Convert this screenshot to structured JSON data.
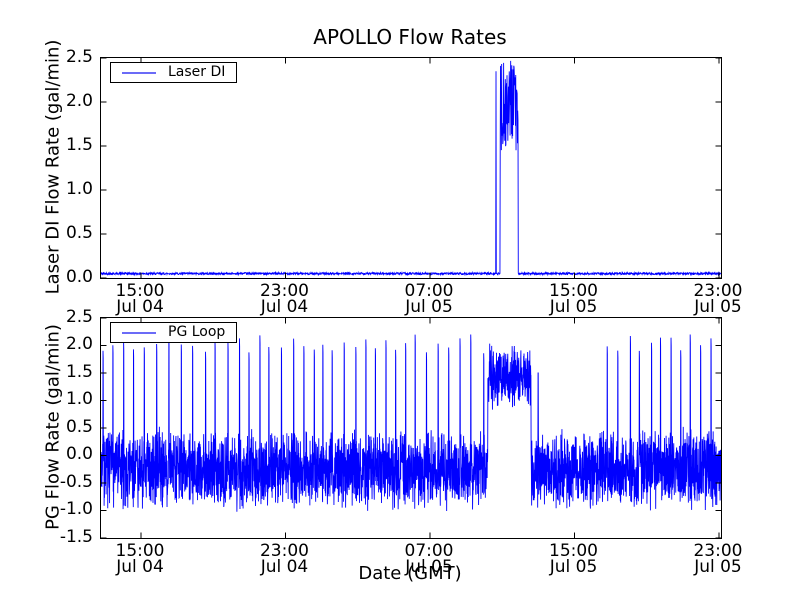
{
  "figure": {
    "background": "#ffffff",
    "axis_color": "#000000",
    "line_color": "#0000ff",
    "legend_sample_color": "#6b6bf7"
  },
  "chart_data": [
    {
      "type": "line",
      "title": "APOLLO Flow Rates",
      "ylabel": "Laser DI Flow Rate (gal/min)",
      "legend": "Laser DI",
      "legend_position": "upper-left",
      "grid": false,
      "ylim": [
        0.0,
        2.5
      ],
      "yticks": [
        "0.0",
        "0.5",
        "1.0",
        "1.5",
        "2.0",
        "2.5"
      ],
      "xticks": [
        {
          "frac": 0.06452,
          "time": "15:00",
          "date": "Jul 04"
        },
        {
          "frac": 0.29758,
          "time": "23:00",
          "date": "Jul 04"
        },
        {
          "frac": 0.53065,
          "time": "07:00",
          "date": "Jul 05"
        },
        {
          "frac": 0.76371,
          "time": "15:00",
          "date": "Jul 05"
        },
        {
          "frac": 0.99677,
          "time": "23:00",
          "date": "Jul 05"
        }
      ],
      "x_range_note": "approx Jul 04 12:45 GMT to Jul 05 23:10 GMT",
      "series_model": {
        "kind": "laser",
        "seed": 42,
        "n_points": 2200,
        "baseline": {
          "value": 0.05,
          "noise": 0.012
        },
        "pre_spike": {
          "frac": 0.637,
          "peak": 2.35
        },
        "burst": {
          "start": 0.6435,
          "end": 0.6726,
          "min": 1.42,
          "max": 2.48
        }
      }
    },
    {
      "type": "line",
      "ylabel": "PG Flow Rate (gal/min)",
      "xlabel": "Date (GMT)",
      "legend": "PG Loop",
      "legend_position": "upper-left",
      "grid": false,
      "ylim": [
        -1.5,
        2.5
      ],
      "yticks": [
        "-1.5",
        "-1.0",
        "-0.5",
        "0.0",
        "0.5",
        "1.0",
        "1.5",
        "2.0",
        "2.5"
      ],
      "xticks": [
        {
          "frac": 0.06452,
          "time": "15:00",
          "date": "Jul 04"
        },
        {
          "frac": 0.29758,
          "time": "23:00",
          "date": "Jul 04"
        },
        {
          "frac": 0.53065,
          "time": "07:00",
          "date": "Jul 05"
        },
        {
          "frac": 0.76371,
          "time": "15:00",
          "date": "Jul 05"
        },
        {
          "frac": 0.99677,
          "time": "23:00",
          "date": "Jul 05"
        }
      ],
      "x_range_note": "approx Jul 04 12:45 GMT to Jul 05 23:10 GMT",
      "series_model": {
        "kind": "pg",
        "seed": 7,
        "n_points": 3400,
        "band": {
          "center": -0.25,
          "half_min": 0.35,
          "half_var": 0.45
        },
        "burst": {
          "start": 0.624,
          "end": 0.6935,
          "center": 1.45,
          "half_min": 0.25,
          "half_var": 0.45
        },
        "spikes": {
          "interval_frac": 0.0175,
          "height_min": 1.85,
          "height_max": 2.2,
          "regions": [
            [
              0.0,
              0.62
            ],
            [
              0.803,
              1.0
            ]
          ],
          "extra": [
            {
              "frac": 0.705,
              "height": 1.5
            }
          ]
        }
      }
    }
  ]
}
